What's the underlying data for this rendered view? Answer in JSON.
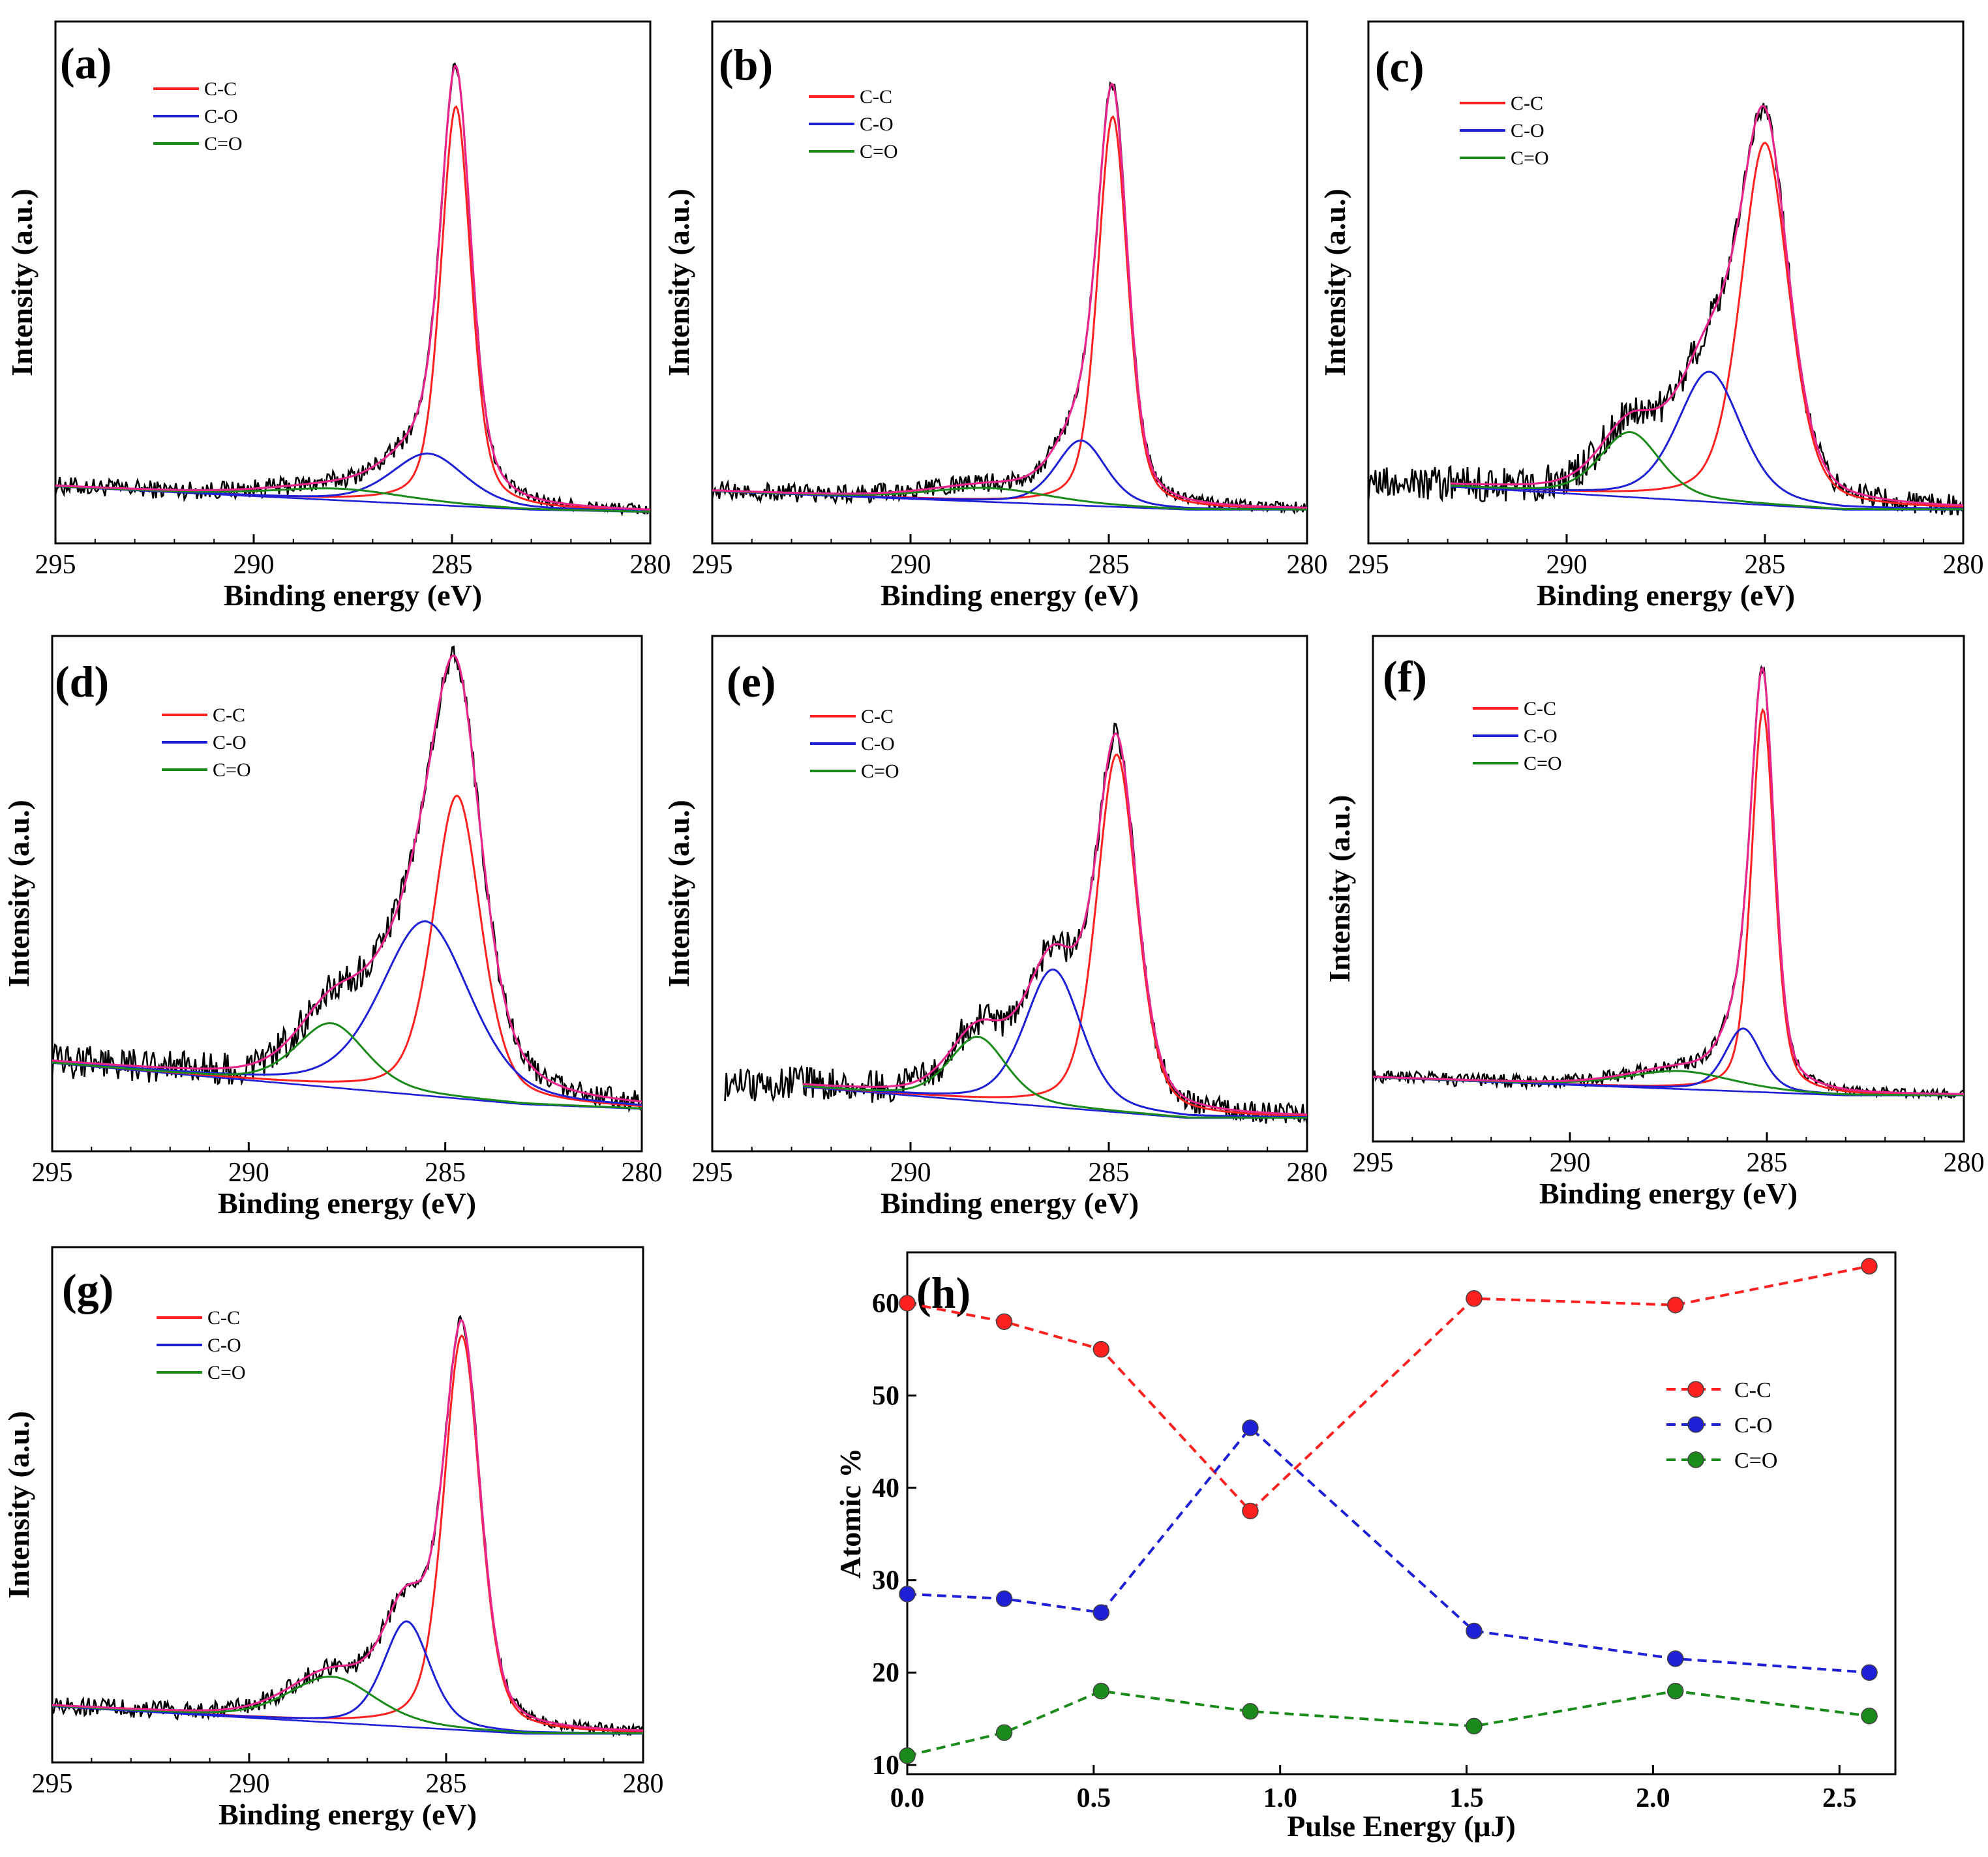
{
  "figure_caption": "",
  "legend_labels": [
    "C-C",
    "C-O",
    "C=O"
  ],
  "colors": {
    "C-C": "#ff2020",
    "C-O": "#1f1fd6",
    "C=O": "#1a8a1a",
    "envelope": "#e8258c",
    "raw": "#000000"
  },
  "chart_data": [
    {
      "panel": "(a)",
      "type": "line",
      "xlabel": "Binding energy (eV)",
      "ylabel": "Intensity (a.u.)",
      "xlim": [
        295,
        280
      ],
      "xticks": [
        "295",
        "290",
        "285",
        "280"
      ],
      "baseline": [
        {
          "x": 295,
          "y": 0.1
        },
        {
          "x": 283,
          "y": 0.05
        },
        {
          "x": 280,
          "y": 0.045
        }
      ],
      "raw_start": 295,
      "noise": 0.008,
      "peaks": [
        {
          "name": "C-C",
          "center": 284.9,
          "height": 0.86,
          "width": 0.45
        },
        {
          "name": "C-O",
          "center": 285.6,
          "height": 0.11,
          "width": 1.1
        },
        {
          "name": "C=O",
          "center": 287.8,
          "height": 0.025,
          "width": 2.0
        }
      ]
    },
    {
      "panel": "(b)",
      "type": "line",
      "xlabel": "Binding energy (eV)",
      "ylabel": "Intensity (a.u.)",
      "xlim": [
        295,
        280
      ],
      "xticks": [
        "295",
        "290",
        "285",
        "280"
      ],
      "baseline": [
        {
          "x": 295,
          "y": 0.09
        },
        {
          "x": 283,
          "y": 0.05
        },
        {
          "x": 280,
          "y": 0.05
        }
      ],
      "raw_start": 295,
      "noise": 0.008,
      "peaks": [
        {
          "name": "C-C",
          "center": 284.9,
          "height": 0.84,
          "width": 0.45
        },
        {
          "name": "C-O",
          "center": 285.7,
          "height": 0.14,
          "width": 0.75
        },
        {
          "name": "C=O",
          "center": 288.0,
          "height": 0.03,
          "width": 1.8
        }
      ]
    },
    {
      "panel": "(c)",
      "type": "line",
      "xlabel": "Binding energy (eV)",
      "ylabel": "Intensity (a.u.)",
      "xlim": [
        295,
        280
      ],
      "xticks": [
        "295",
        "290",
        "285",
        "280"
      ],
      "baseline": [
        {
          "x": 293,
          "y": 0.1
        },
        {
          "x": 283,
          "y": 0.05
        },
        {
          "x": 280,
          "y": 0.05
        }
      ],
      "raw_start": 295,
      "noise": 0.015,
      "peaks": [
        {
          "name": "C-C",
          "center": 285.0,
          "height": 0.78,
          "width": 0.72
        },
        {
          "name": "C-O",
          "center": 286.4,
          "height": 0.28,
          "width": 0.95
        },
        {
          "name": "C=O",
          "center": 288.4,
          "height": 0.14,
          "width": 0.9
        }
      ]
    },
    {
      "panel": "(d)",
      "type": "line",
      "xlabel": "Binding energy (eV)",
      "ylabel": "Intensity (a.u.)",
      "xlim": [
        295,
        280
      ],
      "xticks": [
        "295",
        "290",
        "285",
        "280"
      ],
      "baseline": [
        {
          "x": 295,
          "y": 0.17
        },
        {
          "x": 283,
          "y": 0.08
        },
        {
          "x": 280,
          "y": 0.07
        }
      ],
      "raw_start": 295,
      "noise": 0.015,
      "peaks": [
        {
          "name": "C-C",
          "center": 284.7,
          "height": 0.66,
          "width": 0.72
        },
        {
          "name": "C-O",
          "center": 285.5,
          "height": 0.38,
          "width": 1.35
        },
        {
          "name": "C=O",
          "center": 287.9,
          "height": 0.14,
          "width": 1.05
        }
      ]
    },
    {
      "panel": "(e)",
      "type": "line",
      "xlabel": "Binding energy (eV)",
      "ylabel": "Intensity (a.u.)",
      "xlim": [
        295,
        280
      ],
      "xticks": [
        "295",
        "290",
        "285",
        "280"
      ],
      "baseline": [
        {
          "x": 293,
          "y": 0.12
        },
        {
          "x": 283,
          "y": 0.05
        },
        {
          "x": 280,
          "y": 0.05
        }
      ],
      "raw_start": 295,
      "noise": 0.015,
      "peaks": [
        {
          "name": "C-C",
          "center": 284.8,
          "height": 0.78,
          "width": 0.6
        },
        {
          "name": "C-O",
          "center": 286.4,
          "height": 0.3,
          "width": 0.85
        },
        {
          "name": "C=O",
          "center": 288.3,
          "height": 0.14,
          "width": 0.85
        }
      ]
    },
    {
      "panel": "(f)",
      "type": "line",
      "xlabel": "Binding energy (eV)",
      "ylabel": "Intensity (a.u.)",
      "xlim": [
        295,
        280
      ],
      "xticks": [
        "295",
        "290",
        "285",
        "280"
      ],
      "baseline": [
        {
          "x": 295,
          "y": 0.12
        },
        {
          "x": 283,
          "y": 0.08
        },
        {
          "x": 280,
          "y": 0.08
        }
      ],
      "raw_start": 295,
      "noise": 0.006,
      "peaks": [
        {
          "name": "C-C",
          "center": 285.1,
          "height": 0.85,
          "width": 0.35
        },
        {
          "name": "C-O",
          "center": 285.6,
          "height": 0.14,
          "width": 0.55
        },
        {
          "name": "C=O",
          "center": 287.2,
          "height": 0.04,
          "width": 1.6
        }
      ]
    },
    {
      "panel": "(g)",
      "type": "line",
      "xlabel": "Binding energy (eV)",
      "ylabel": "Intensity (a.u.)",
      "xlim": [
        295,
        280
      ],
      "xticks": [
        "295",
        "290",
        "285",
        "280"
      ],
      "baseline": [
        {
          "x": 295,
          "y": 0.1
        },
        {
          "x": 283,
          "y": 0.04
        },
        {
          "x": 280,
          "y": 0.04
        }
      ],
      "raw_start": 295,
      "noise": 0.008,
      "peaks": [
        {
          "name": "C-C",
          "center": 284.6,
          "height": 0.86,
          "width": 0.55
        },
        {
          "name": "C-O",
          "center": 286.0,
          "height": 0.23,
          "width": 0.7
        },
        {
          "name": "C=O",
          "center": 287.9,
          "height": 0.1,
          "width": 1.3
        }
      ]
    },
    {
      "panel": "(h)",
      "type": "line",
      "xlabel": "Pulse Energy (μJ)",
      "ylabel": "Atomic %",
      "xlim": [
        0,
        2.65
      ],
      "ylim": [
        9,
        65.5
      ],
      "xticks": [
        "0.0",
        "0.5",
        "1.0",
        "1.5",
        "2.0",
        "2.5"
      ],
      "yticks": [
        "10",
        "20",
        "30",
        "40",
        "50",
        "60"
      ],
      "x": [
        0.0,
        0.26,
        0.52,
        0.92,
        1.52,
        2.06,
        2.58
      ],
      "series": [
        {
          "name": "C-C",
          "values": [
            60.0,
            58.0,
            55.0,
            37.5,
            60.5,
            59.8,
            64.0
          ]
        },
        {
          "name": "C-O",
          "values": [
            28.5,
            28.0,
            26.5,
            46.5,
            24.5,
            21.5,
            20.0
          ]
        },
        {
          "name": "C=O",
          "values": [
            11.0,
            13.5,
            18.0,
            15.8,
            14.2,
            18.0,
            15.3
          ]
        }
      ]
    }
  ]
}
